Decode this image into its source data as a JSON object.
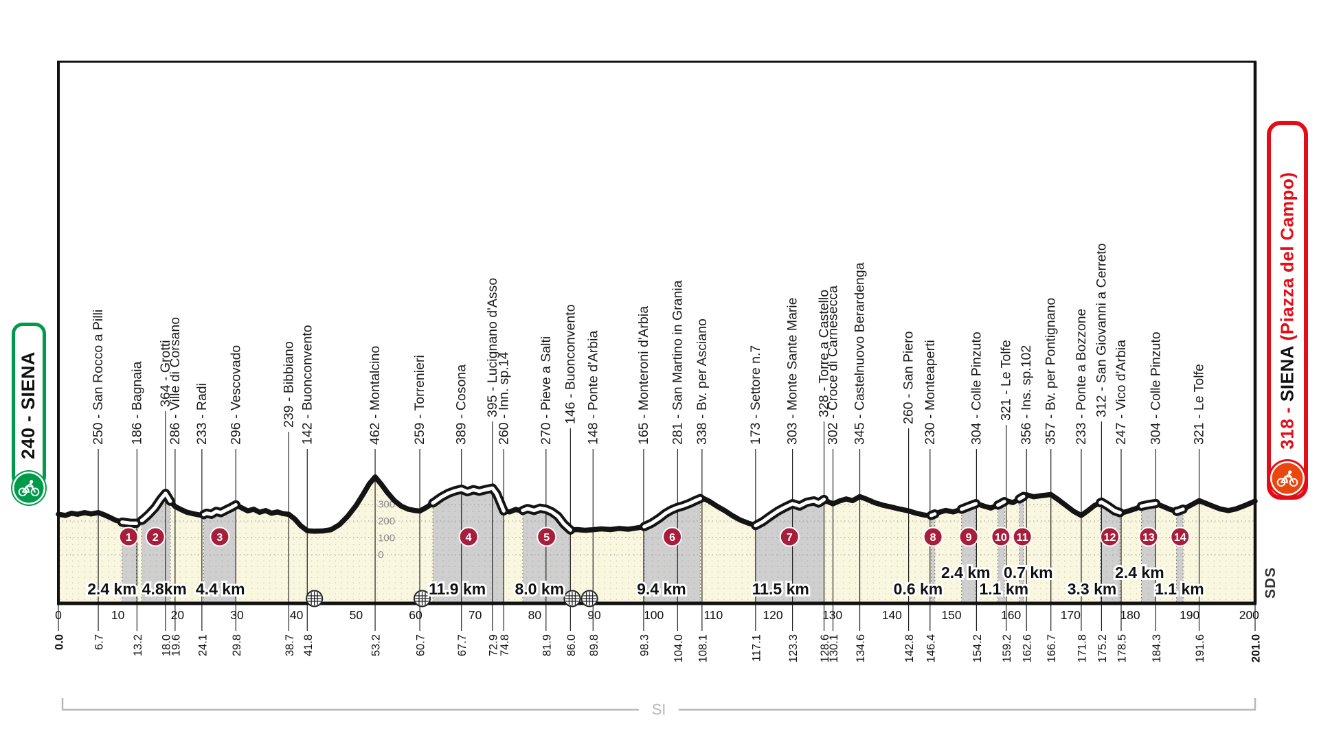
{
  "race": {
    "start_label": {
      "text": "240 - SIENA"
    },
    "finish_label": {
      "prefix": "318 -",
      "name": "SIENA",
      "venue": "(Piazza del Campo)"
    }
  },
  "footer": {
    "region_code": "SI"
  },
  "side_code": "SDS",
  "colors": {
    "accent_green": "#009B4A",
    "accent_red": "#E30D17",
    "finish_circle_fill": "#E8470F",
    "sector_circle": "#A61E3C",
    "ground_cream": "#FAF7E1",
    "band_gray": "#CFCFCF",
    "line_black": "#141414",
    "grid_gray": "#9A9A9A",
    "bracket_gray": "#B8B8B8",
    "scale_text_gray": "#8A8A8A"
  },
  "chart_data": {
    "type": "area",
    "title": "",
    "xlabel": "km",
    "ylabel": "m",
    "x_range": [
      0,
      201
    ],
    "x_ticks": [
      0,
      10,
      20,
      30,
      40,
      50,
      60,
      70,
      80,
      90,
      100,
      110,
      120,
      130,
      140,
      150,
      160,
      170,
      180,
      190,
      200
    ],
    "y_ticks_m": [
      0,
      100,
      200,
      300
    ],
    "elevation_scale_at_km": 53.2,
    "grid": true,
    "distance_labels": [
      0.0,
      6.7,
      13.2,
      18.0,
      19.6,
      24.1,
      29.8,
      38.7,
      41.8,
      53.2,
      60.7,
      67.7,
      72.9,
      74.8,
      81.9,
      86.0,
      89.8,
      98.3,
      104.0,
      108.1,
      117.1,
      123.3,
      128.6,
      130.1,
      134.6,
      142.8,
      146.4,
      154.2,
      159.2,
      162.6,
      166.7,
      171.8,
      175.2,
      178.5,
      184.3,
      191.6,
      201.0
    ],
    "waypoints": [
      {
        "km": 6.7,
        "elev": 250,
        "name": "San Rocco a Pilli",
        "lift": 0
      },
      {
        "km": 13.2,
        "elev": 186,
        "name": "Bagnaia",
        "lift": 0
      },
      {
        "km": 18.0,
        "elev": 364,
        "name": "Grotti",
        "lift": 55
      },
      {
        "km": 19.6,
        "elev": 286,
        "name": "Ville di Corsano",
        "lift": 0
      },
      {
        "km": 24.1,
        "elev": 233,
        "name": "Radi",
        "lift": 0
      },
      {
        "km": 29.8,
        "elev": 296,
        "name": "Vescovado",
        "lift": 0
      },
      {
        "km": 38.7,
        "elev": 239,
        "name": "Bibbiano",
        "lift": 25
      },
      {
        "km": 41.8,
        "elev": 142,
        "name": "Buonconvento",
        "lift": 0
      },
      {
        "km": 53.2,
        "elev": 462,
        "name": "Montalcino",
        "lift": 0
      },
      {
        "km": 60.7,
        "elev": 259,
        "name": "Torrenieri",
        "lift": 0
      },
      {
        "km": 67.7,
        "elev": 389,
        "name": "Cosona",
        "lift": 0
      },
      {
        "km": 72.9,
        "elev": 395,
        "name": "Lucignano d'Asso",
        "lift": 40
      },
      {
        "km": 74.8,
        "elev": 260,
        "name": "Inn. sp.14",
        "lift": 0
      },
      {
        "km": 81.9,
        "elev": 270,
        "name": "Pieve a Salti",
        "lift": 0
      },
      {
        "km": 86.0,
        "elev": 146,
        "name": "Buonconvento",
        "lift": 30
      },
      {
        "km": 89.8,
        "elev": 148,
        "name": "Ponte d'Arbia",
        "lift": 0
      },
      {
        "km": 98.3,
        "elev": 165,
        "name": "Monteroni d'Arbia",
        "lift": 0
      },
      {
        "km": 104.0,
        "elev": 281,
        "name": "San Martino in Grania",
        "lift": 0
      },
      {
        "km": 108.1,
        "elev": 338,
        "name": "Bv. per Asciano",
        "lift": 0
      },
      {
        "km": 117.1,
        "elev": 173,
        "name": "Settore n.7",
        "lift": 0
      },
      {
        "km": 123.3,
        "elev": 303,
        "name": "Monte Sante Marie",
        "lift": 0
      },
      {
        "km": 128.6,
        "elev": 328,
        "name": "Torre a Castello",
        "lift": 40
      },
      {
        "km": 130.1,
        "elev": 302,
        "name": "Croce di Carnesecca",
        "lift": 0
      },
      {
        "km": 134.6,
        "elev": 345,
        "name": "Castelnuovo Berardenga",
        "lift": 0
      },
      {
        "km": 142.8,
        "elev": 260,
        "name": "San Piero",
        "lift": 30
      },
      {
        "km": 146.4,
        "elev": 230,
        "name": "Monteaperti",
        "lift": 0
      },
      {
        "km": 154.2,
        "elev": 304,
        "name": "Colle Pinzuto",
        "lift": 0
      },
      {
        "km": 159.2,
        "elev": 321,
        "name": "Le Tolfe",
        "lift": 35
      },
      {
        "km": 162.6,
        "elev": 356,
        "name": "Ins. sp.102",
        "lift": 0
      },
      {
        "km": 166.7,
        "elev": 357,
        "name": "Bv. per Pontignano",
        "lift": 0
      },
      {
        "km": 171.8,
        "elev": 233,
        "name": "Ponte a Bozzone",
        "lift": 0
      },
      {
        "km": 175.2,
        "elev": 312,
        "name": "San Giovanni a Cerreto",
        "lift": 40
      },
      {
        "km": 178.5,
        "elev": 247,
        "name": "Vico d'Arbia",
        "lift": 0
      },
      {
        "km": 184.3,
        "elev": 304,
        "name": "Colle Pinzuto",
        "lift": 0
      },
      {
        "km": 191.6,
        "elev": 321,
        "name": "Le Tolfe",
        "lift": 0
      }
    ],
    "sectors": [
      {
        "n": 1,
        "start": 10.7,
        "end": 13.1,
        "length_label": "2.4 km",
        "label_km": 9.0,
        "row": "low",
        "circle_km": 11.8
      },
      {
        "n": 2,
        "start": 14.0,
        "end": 18.8,
        "length_label": "4.8km",
        "label_km": 17.8,
        "row": "low",
        "circle_km": 16.3
      },
      {
        "n": 3,
        "start": 24.4,
        "end": 29.8,
        "length_label": "4.4 km",
        "label_km": 27.2,
        "row": "low",
        "circle_km": 27.1
      },
      {
        "n": 4,
        "start": 62.9,
        "end": 74.8,
        "length_label": "11.9 km",
        "label_km": 67.0,
        "row": "low",
        "circle_km": 68.9
      },
      {
        "n": 5,
        "start": 78.0,
        "end": 86.0,
        "length_label": "8.0 km",
        "label_km": 80.8,
        "row": "low",
        "circle_km": 82.0
      },
      {
        "n": 6,
        "start": 98.4,
        "end": 107.8,
        "length_label": "9.4 km",
        "label_km": 101.3,
        "row": "low",
        "circle_km": 103.1
      },
      {
        "n": 7,
        "start": 117.1,
        "end": 128.6,
        "length_label": "11.5 km",
        "label_km": 121.3,
        "row": "low",
        "circle_km": 122.8
      },
      {
        "n": 8,
        "start": 146.6,
        "end": 147.2,
        "length_label": "0.6 km",
        "label_km": 144.4,
        "row": "low",
        "circle_km": 146.9
      },
      {
        "n": 9,
        "start": 151.7,
        "end": 154.1,
        "length_label": "2.4 km",
        "label_km": 152.4,
        "row": "high",
        "circle_km": 152.9
      },
      {
        "n": 10,
        "start": 157.8,
        "end": 158.9,
        "length_label": "1.1 km",
        "label_km": 158.8,
        "row": "low",
        "circle_km": 158.3
      },
      {
        "n": 11,
        "start": 161.4,
        "end": 162.1,
        "length_label": "0.7 km",
        "label_km": 162.9,
        "row": "high",
        "circle_km": 161.9
      },
      {
        "n": 12,
        "start": 175.0,
        "end": 178.3,
        "length_label": "3.3 km",
        "label_km": 173.6,
        "row": "low",
        "circle_km": 176.6
      },
      {
        "n": 13,
        "start": 181.9,
        "end": 184.3,
        "length_label": "2.4 km",
        "label_km": 181.6,
        "row": "high",
        "circle_km": 183.1
      },
      {
        "n": 14,
        "start": 187.8,
        "end": 188.9,
        "length_label": "1.1 km",
        "label_km": 188.3,
        "row": "low",
        "circle_km": 188.4
      }
    ],
    "railway_crossings_km": [
      43.0,
      61.1,
      86.3,
      89.2
    ],
    "profile": [
      [
        0,
        240
      ],
      [
        1.2,
        233
      ],
      [
        2.2,
        246
      ],
      [
        3.2,
        240
      ],
      [
        4.4,
        250
      ],
      [
        5.5,
        242
      ],
      [
        6.7,
        250
      ],
      [
        7.6,
        238
      ],
      [
        8.6,
        222
      ],
      [
        9.6,
        205
      ],
      [
        10.7,
        193
      ],
      [
        12,
        187
      ],
      [
        13.2,
        186
      ],
      [
        14.2,
        208
      ],
      [
        15.2,
        240
      ],
      [
        16.2,
        278
      ],
      [
        17.2,
        330
      ],
      [
        18,
        364
      ],
      [
        18.8,
        318
      ],
      [
        19.6,
        286
      ],
      [
        20.6,
        268
      ],
      [
        21.6,
        252
      ],
      [
        22.8,
        242
      ],
      [
        24.1,
        233
      ],
      [
        24.9,
        246
      ],
      [
        25.7,
        240
      ],
      [
        26.5,
        257
      ],
      [
        27.3,
        250
      ],
      [
        28.3,
        268
      ],
      [
        29.1,
        282
      ],
      [
        29.8,
        296
      ],
      [
        30.8,
        278
      ],
      [
        31.8,
        260
      ],
      [
        32.8,
        270
      ],
      [
        33.8,
        252
      ],
      [
        34.8,
        262
      ],
      [
        35.8,
        246
      ],
      [
        36.8,
        254
      ],
      [
        37.7,
        244
      ],
      [
        38.7,
        239
      ],
      [
        39.7,
        212
      ],
      [
        40.7,
        172
      ],
      [
        41.8,
        142
      ],
      [
        43,
        139
      ],
      [
        44.4,
        141
      ],
      [
        45.8,
        148
      ],
      [
        47.2,
        178
      ],
      [
        48.6,
        228
      ],
      [
        50,
        292
      ],
      [
        51.2,
        360
      ],
      [
        52.2,
        420
      ],
      [
        53.2,
        462
      ],
      [
        54.2,
        420
      ],
      [
        55.2,
        372
      ],
      [
        56.4,
        322
      ],
      [
        57.6,
        288
      ],
      [
        58.8,
        270
      ],
      [
        59.8,
        263
      ],
      [
        60.7,
        259
      ],
      [
        61.9,
        283
      ],
      [
        63.1,
        312
      ],
      [
        64.3,
        342
      ],
      [
        65.5,
        365
      ],
      [
        66.6,
        379
      ],
      [
        67.7,
        389
      ],
      [
        68.7,
        374
      ],
      [
        69.7,
        386
      ],
      [
        70.7,
        377
      ],
      [
        71.8,
        387
      ],
      [
        72.9,
        395
      ],
      [
        73.6,
        362
      ],
      [
        74.8,
        260
      ],
      [
        75.8,
        254
      ],
      [
        76.8,
        269
      ],
      [
        77.8,
        260
      ],
      [
        78.8,
        274
      ],
      [
        79.9,
        263
      ],
      [
        80.9,
        276
      ],
      [
        81.9,
        270
      ],
      [
        82.9,
        254
      ],
      [
        83.9,
        228
      ],
      [
        84.9,
        182
      ],
      [
        86,
        146
      ],
      [
        87.1,
        149
      ],
      [
        88.4,
        145
      ],
      [
        89.8,
        148
      ],
      [
        91.2,
        153
      ],
      [
        92.7,
        149
      ],
      [
        94.2,
        156
      ],
      [
        95.7,
        151
      ],
      [
        97,
        158
      ],
      [
        98.3,
        165
      ],
      [
        99.6,
        186
      ],
      [
        100.9,
        216
      ],
      [
        102,
        246
      ],
      [
        103,
        266
      ],
      [
        104,
        281
      ],
      [
        105,
        291
      ],
      [
        106.1,
        306
      ],
      [
        107.1,
        323
      ],
      [
        108.1,
        338
      ],
      [
        109.3,
        318
      ],
      [
        110.6,
        288
      ],
      [
        111.9,
        262
      ],
      [
        113.2,
        232
      ],
      [
        114.5,
        206
      ],
      [
        115.8,
        188
      ],
      [
        117.1,
        173
      ],
      [
        118.3,
        196
      ],
      [
        119.5,
        227
      ],
      [
        120.8,
        258
      ],
      [
        122,
        281
      ],
      [
        123.3,
        303
      ],
      [
        124.5,
        289
      ],
      [
        125.7,
        311
      ],
      [
        126.9,
        319
      ],
      [
        127.7,
        307
      ],
      [
        128.6,
        328
      ],
      [
        129.3,
        314
      ],
      [
        130.1,
        302
      ],
      [
        131.2,
        319
      ],
      [
        132.3,
        331
      ],
      [
        133.4,
        321
      ],
      [
        134.6,
        345
      ],
      [
        135.8,
        329
      ],
      [
        137.1,
        309
      ],
      [
        138.5,
        294
      ],
      [
        139.9,
        283
      ],
      [
        141.3,
        271
      ],
      [
        142.8,
        260
      ],
      [
        144,
        247
      ],
      [
        145.2,
        237
      ],
      [
        146.4,
        230
      ],
      [
        147.7,
        249
      ],
      [
        149,
        263
      ],
      [
        150.3,
        254
      ],
      [
        151.6,
        269
      ],
      [
        152.9,
        287
      ],
      [
        154.2,
        304
      ],
      [
        155.4,
        289
      ],
      [
        156.6,
        277
      ],
      [
        157.9,
        296
      ],
      [
        159.2,
        321
      ],
      [
        160.3,
        309
      ],
      [
        161.4,
        331
      ],
      [
        162.6,
        356
      ],
      [
        163.8,
        344
      ],
      [
        165.2,
        351
      ],
      [
        166.7,
        357
      ],
      [
        167.9,
        328
      ],
      [
        169.2,
        293
      ],
      [
        170.5,
        258
      ],
      [
        171.8,
        233
      ],
      [
        172.9,
        261
      ],
      [
        174,
        292
      ],
      [
        175.2,
        312
      ],
      [
        176.3,
        288
      ],
      [
        177.4,
        261
      ],
      [
        178.5,
        247
      ],
      [
        179.7,
        259
      ],
      [
        180.9,
        273
      ],
      [
        182,
        289
      ],
      [
        183.1,
        297
      ],
      [
        184.3,
        304
      ],
      [
        185.5,
        287
      ],
      [
        186.7,
        269
      ],
      [
        187.9,
        257
      ],
      [
        189.1,
        273
      ],
      [
        190.3,
        296
      ],
      [
        191.6,
        321
      ],
      [
        192.8,
        304
      ],
      [
        194,
        287
      ],
      [
        195.2,
        271
      ],
      [
        196.5,
        262
      ],
      [
        197.7,
        271
      ],
      [
        198.6,
        283
      ],
      [
        199.4,
        294
      ],
      [
        200.2,
        306
      ],
      [
        201,
        318
      ]
    ]
  }
}
